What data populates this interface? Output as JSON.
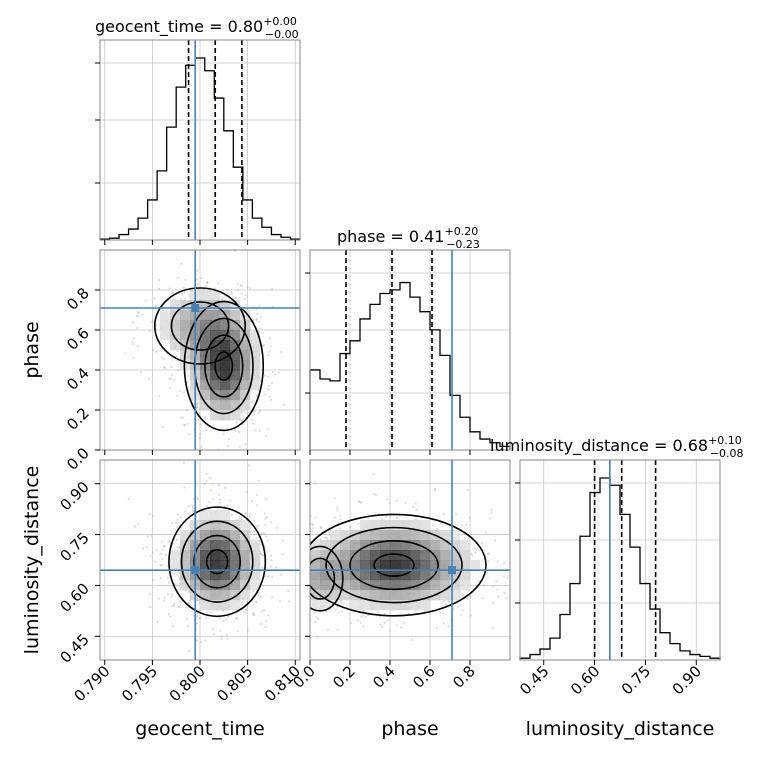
{
  "chart_data": {
    "type": "corner",
    "parameters": [
      "geocent_time",
      "phase",
      "luminosity_distance"
    ],
    "truths": {
      "geocent_time": 0.7995,
      "phase": 0.71,
      "luminosity_distance": 0.645
    },
    "titles": [
      {
        "param": "geocent_time",
        "name": "geocent_time",
        "value": "0.80",
        "plus": "+0.00",
        "minus": "−0.00"
      },
      {
        "param": "phase",
        "name": "phase",
        "value": "0.41",
        "plus": "+0.20",
        "minus": "−0.23"
      },
      {
        "param": "luminosity_distance",
        "name": "luminosity_distance",
        "value": "0.68",
        "plus": "+0.10",
        "minus": "−0.08"
      }
    ],
    "ranges": {
      "geocent_time": [
        0.7895,
        0.8105
      ],
      "phase": [
        0.0,
        1.0
      ],
      "luminosity_distance": [
        0.38,
        0.97
      ]
    },
    "ticks": {
      "geocent_time": [
        "0.790",
        "0.795",
        "0.800",
        "0.805",
        "0.810"
      ],
      "phase": [
        "0.0",
        "0.2",
        "0.4",
        "0.6",
        "0.8"
      ],
      "luminosity_distance": [
        "0.45",
        "0.60",
        "0.75",
        "0.90"
      ]
    },
    "quantiles": {
      "geocent_time": [
        0.7988,
        0.8016,
        0.8044
      ],
      "phase": [
        0.18,
        0.41,
        0.61
      ],
      "luminosity_distance": [
        0.6,
        0.68,
        0.78
      ]
    },
    "histograms": {
      "geocent_time": {
        "edges_start": 0.7895,
        "bin_width": 0.001,
        "counts": [
          0.005,
          0.01,
          0.03,
          0.06,
          0.12,
          0.22,
          0.38,
          0.62,
          0.84,
          0.96,
          1.0,
          0.93,
          0.78,
          0.6,
          0.4,
          0.22,
          0.12,
          0.07,
          0.03,
          0.015,
          0.005
        ]
      },
      "phase": {
        "edges_start": 0.0,
        "bin_width": 0.05,
        "counts": [
          0.44,
          0.39,
          0.38,
          0.53,
          0.6,
          0.72,
          0.8,
          0.86,
          0.88,
          0.92,
          0.84,
          0.76,
          0.66,
          0.52,
          0.3,
          0.18,
          0.1,
          0.06,
          0.04,
          0.02
        ]
      },
      "luminosity_distance": {
        "edges_start": 0.38,
        "bin_width": 0.0295,
        "counts": [
          0.01,
          0.03,
          0.06,
          0.12,
          0.25,
          0.42,
          0.68,
          0.92,
          1.0,
          0.96,
          0.8,
          0.62,
          0.42,
          0.28,
          0.15,
          0.09,
          0.05,
          0.03,
          0.02,
          0.01
        ]
      }
    },
    "grid": true,
    "colors": {
      "truth": "#4682b4",
      "line": "#000000",
      "grid": "#c8c8c8",
      "scatter": "#9a9a9a"
    }
  }
}
